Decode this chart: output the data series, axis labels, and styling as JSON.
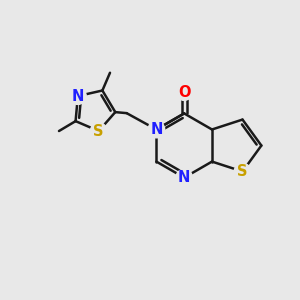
{
  "background_color": "#e8e8e8",
  "bond_color": "#1a1a1a",
  "atom_colors": {
    "N": "#2020ff",
    "S": "#c8a000",
    "O": "#ff0000",
    "C": "#1a1a1a"
  },
  "bond_width": 1.8,
  "figsize": [
    3.0,
    3.0
  ],
  "dpi": 100
}
